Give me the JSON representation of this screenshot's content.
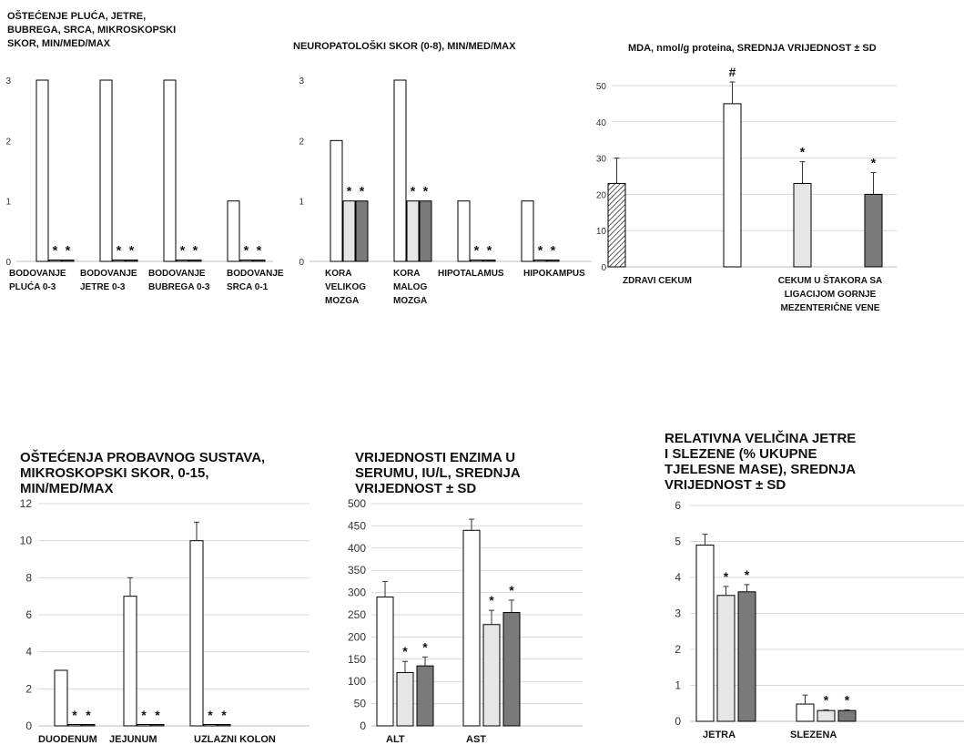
{
  "colors": {
    "white": "#ffffff",
    "light": "#e6e6e6",
    "dark": "#7a7a7a",
    "stroke": "#000000",
    "grid": "#d9d9d9"
  },
  "chart_data": [
    {
      "id": "organs",
      "type": "bar",
      "title_lines": [
        "OŠTEĆENJE PLUĆA, JETRE,",
        "BUBREGA, SRCA, MIKROSKOPSKI",
        "SKOR, MIN/MED/MAX"
      ],
      "ylim": [
        0,
        3
      ],
      "yticks": [
        0,
        1,
        2,
        3
      ],
      "grid": false,
      "groups": [
        {
          "label_lines": [
            "BODOVANJE",
            "PLUĆA 0-3"
          ],
          "values": [
            3,
            0.02,
            0.02
          ],
          "markers": [
            "",
            "*",
            "*"
          ]
        },
        {
          "label_lines": [
            "BODOVANJE",
            "JETRE 0-3"
          ],
          "values": [
            3,
            0.02,
            0.02
          ],
          "markers": [
            "",
            "*",
            "*"
          ]
        },
        {
          "label_lines": [
            "BODOVANJE",
            "BUBREGA 0-3"
          ],
          "values": [
            3,
            0.02,
            0.02
          ],
          "markers": [
            "",
            "*",
            "*"
          ]
        },
        {
          "label_lines": [
            "BODOVANJE",
            "SRCA 0-1"
          ],
          "values": [
            1,
            0.02,
            0.02
          ],
          "markers": [
            "",
            "*",
            "*"
          ]
        }
      ]
    },
    {
      "id": "neuro",
      "type": "bar",
      "title_lines": [
        "NEUROPATOLOŠKI SKOR (0-8), MIN/MED/MAX"
      ],
      "ylim": [
        0,
        3
      ],
      "yticks": [
        0,
        1,
        2,
        3
      ],
      "grid": false,
      "groups": [
        {
          "label_lines": [
            "KORA",
            "VELIKOG",
            "MOZGA"
          ],
          "values": [
            2,
            1,
            1
          ],
          "markers": [
            "",
            "*",
            "*"
          ]
        },
        {
          "label_lines": [
            "KORA",
            "MALOG",
            "MOZGA"
          ],
          "values": [
            3,
            1,
            1
          ],
          "markers": [
            "",
            "*",
            "*"
          ]
        },
        {
          "label_lines": [
            "HIPOTALAMUS"
          ],
          "values": [
            1,
            0.02,
            0.02
          ],
          "markers": [
            "",
            "*",
            "*"
          ]
        },
        {
          "label_lines": [
            "HIPOKAMPUS"
          ],
          "values": [
            1,
            0.02,
            0.02
          ],
          "markers": [
            "",
            "*",
            "*"
          ]
        }
      ]
    },
    {
      "id": "mda",
      "type": "bar",
      "title_lines": [
        "MDA, nmol/g proteina, SREDNJA VRIJEDNOST ± SD"
      ],
      "ylim": [
        0,
        50
      ],
      "yticks": [
        0,
        10,
        20,
        30,
        40,
        50
      ],
      "grid": true,
      "bars": [
        {
          "value": 23,
          "sd": 7,
          "fill": "hatch",
          "marker": ""
        },
        {
          "value": 45,
          "sd": 6,
          "fill": "white",
          "marker": "#"
        },
        {
          "value": 23,
          "sd": 6,
          "fill": "light",
          "marker": "*"
        },
        {
          "value": 20,
          "sd": 6,
          "fill": "dark",
          "marker": "*"
        }
      ],
      "category_labels": [
        {
          "lines": [
            "ZDRAVI CEKUM"
          ]
        },
        {
          "lines": [
            "CEKUM U ŠTAKORA SA",
            "LIGACIJOM GORNJE",
            "MEZENTERIČNE VENE"
          ]
        }
      ]
    },
    {
      "id": "gi",
      "type": "bar",
      "title_lines": [
        "OŠTEĆENJA PROBAVNOG SUSTAVA,",
        "MIKROSKOPSKI SKOR, 0-15,",
        "MIN/MED/MAX"
      ],
      "ylim": [
        0,
        12
      ],
      "yticks": [
        0,
        2,
        4,
        6,
        8,
        10,
        12
      ],
      "grid": true,
      "groups": [
        {
          "label_lines": [
            "DUODENUM"
          ],
          "values": [
            3,
            0.05,
            0.05
          ],
          "errors": [
            0,
            0,
            0
          ],
          "markers": [
            "",
            "*",
            "*"
          ]
        },
        {
          "label_lines": [
            "JEJUNUM"
          ],
          "values": [
            7,
            0.05,
            0.05
          ],
          "errors": [
            1,
            0,
            0
          ],
          "markers": [
            "",
            "*",
            "*"
          ]
        },
        {
          "label_lines": [
            "UZLAZNI KOLON"
          ],
          "values": [
            10,
            0.05,
            0.05
          ],
          "errors": [
            1,
            0,
            0
          ],
          "markers": [
            "",
            "*",
            "*"
          ]
        }
      ]
    },
    {
      "id": "enzymes",
      "type": "bar",
      "title_lines": [
        "VRIJEDNOSTI ENZIMA U",
        "SERUMU, IU/L,  SREDNJA",
        "VRIJEDNOST ± SD"
      ],
      "ylim": [
        0,
        500
      ],
      "yticks": [
        0,
        50,
        100,
        150,
        200,
        250,
        300,
        350,
        400,
        450,
        500
      ],
      "grid": true,
      "groups": [
        {
          "label_lines": [
            "ALT"
          ],
          "values": [
            290,
            120,
            135
          ],
          "errors": [
            35,
            25,
            20
          ],
          "markers": [
            "",
            "*",
            "*"
          ]
        },
        {
          "label_lines": [
            "AST"
          ],
          "values": [
            440,
            228,
            255
          ],
          "errors": [
            25,
            32,
            28
          ],
          "markers": [
            "",
            "*",
            "*"
          ]
        }
      ]
    },
    {
      "id": "organsize",
      "type": "bar",
      "title_lines": [
        "RELATIVNA VELIČINA JETRE",
        "I SLEZENE (% UKUPNE",
        "TJELESNE MASE), SREDNJA",
        "VRIJEDNOST ± SD"
      ],
      "ylim": [
        0,
        6
      ],
      "yticks": [
        0,
        1,
        2,
        3,
        4,
        5,
        6
      ],
      "grid": true,
      "groups": [
        {
          "label_lines": [
            "JETRA"
          ],
          "values": [
            4.9,
            3.5,
            3.6
          ],
          "errors": [
            0.3,
            0.25,
            0.2
          ],
          "markers": [
            "",
            "*",
            "*"
          ]
        },
        {
          "label_lines": [
            "SLEZENA"
          ],
          "values": [
            0.48,
            0.3,
            0.3
          ],
          "errors": [
            0.25,
            0.02,
            0.02
          ],
          "markers": [
            "",
            "*",
            "*"
          ]
        }
      ]
    }
  ]
}
